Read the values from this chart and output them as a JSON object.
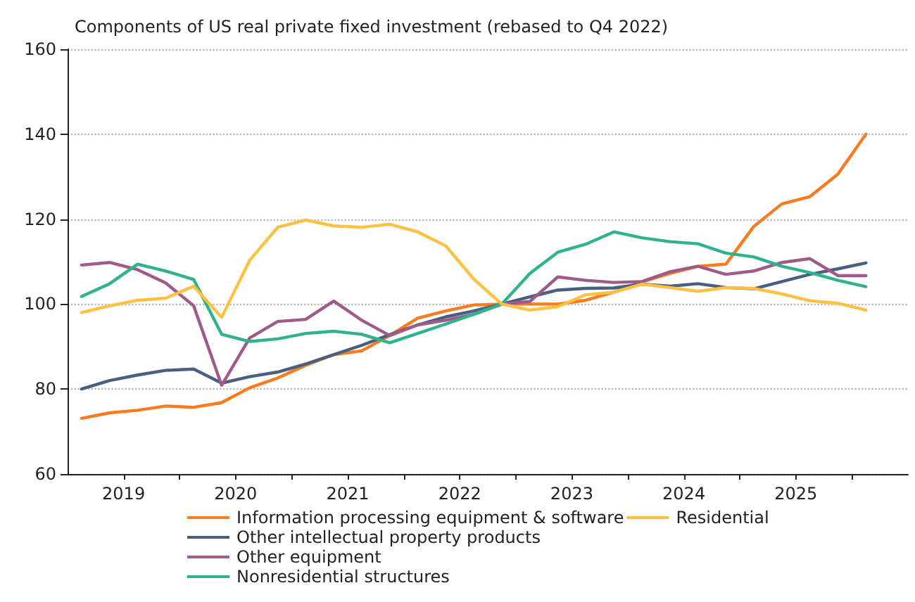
{
  "chart_data": {
    "type": "line",
    "title": "Components of US real private fixed investment (rebased to Q4 2022)",
    "x": [
      2019.125,
      2019.375,
      2019.625,
      2019.875,
      2020.125,
      2020.375,
      2020.625,
      2020.875,
      2021.125,
      2021.375,
      2021.625,
      2021.875,
      2022.125,
      2022.375,
      2022.625,
      2022.875,
      2023.125,
      2023.375,
      2023.625,
      2023.875,
      2024.125,
      2024.375,
      2024.625,
      2024.875,
      2025.125,
      2025.375,
      2025.625,
      2025.875,
      2026.125
    ],
    "series": [
      {
        "name": "Information processing equipment & software",
        "color": "#f97a1f",
        "values": [
          73.1,
          74.4,
          75,
          76,
          75.7,
          76.8,
          80.3,
          82.6,
          85.6,
          88.1,
          89,
          92.6,
          96.7,
          98.4,
          99.8,
          100,
          100,
          100,
          100.9,
          102.8,
          105.2,
          107.2,
          108.9,
          109.4,
          118.3,
          123.6,
          125.3,
          130.6,
          140
        ]
      },
      {
        "name": "Other intellectual property products",
        "color": "#4a5e80",
        "values": [
          80,
          82,
          83.3,
          84.4,
          84.7,
          81.4,
          82.9,
          84,
          85.9,
          88.1,
          90.3,
          92.8,
          95.1,
          97,
          98.4,
          100,
          101.7,
          103.3,
          103.7,
          103.8,
          104.7,
          104.2,
          104.8,
          103.9,
          103.6,
          105.3,
          107,
          108.3,
          109.7
        ]
      },
      {
        "name": "Other equipment",
        "color": "#a05a8a",
        "values": [
          109.2,
          109.8,
          108.1,
          105,
          99.6,
          80.9,
          92,
          95.9,
          96.4,
          100.7,
          96.2,
          92.6,
          95.1,
          96.2,
          97.6,
          100,
          100.6,
          106.4,
          105.6,
          105.1,
          105.3,
          107.6,
          108.9,
          107,
          107.8,
          109.8,
          110.7,
          106.7,
          106.7
        ]
      },
      {
        "name": "Nonresidential structures",
        "color": "#2fb38e",
        "values": [
          101.8,
          104.8,
          109.4,
          107.8,
          105.8,
          92.9,
          91.2,
          91.8,
          93.1,
          93.6,
          92.9,
          90.9,
          93.1,
          95.3,
          97.6,
          100,
          107.2,
          112.2,
          114.1,
          117,
          115.6,
          114.7,
          114.2,
          112,
          111.1,
          108.9,
          107.4,
          105.6,
          104.1
        ]
      },
      {
        "name": "Residential",
        "color": "#fdc13f",
        "values": [
          98,
          99.6,
          100.9,
          101.4,
          104.2,
          96.9,
          110.3,
          118.1,
          119.8,
          118.4,
          118.1,
          118.8,
          117,
          113.7,
          105.9,
          100,
          98.6,
          99.4,
          102.2,
          102.8,
          104.7,
          103.9,
          103,
          103.9,
          103.7,
          102.4,
          100.8,
          100.2,
          98.6
        ]
      }
    ],
    "xlim": [
      2019,
      2026.5
    ],
    "xticks": [
      {
        "value": 2019.5,
        "label": "2019"
      },
      {
        "value": 2020,
        "label": null
      },
      {
        "value": 2020.5,
        "label": "2020"
      },
      {
        "value": 2021,
        "label": null
      },
      {
        "value": 2021.5,
        "label": "2021"
      },
      {
        "value": 2022,
        "label": null
      },
      {
        "value": 2022.5,
        "label": "2022"
      },
      {
        "value": 2023,
        "label": null
      },
      {
        "value": 2023.5,
        "label": "2023"
      },
      {
        "value": 2024,
        "label": null
      },
      {
        "value": 2024.5,
        "label": "2024"
      },
      {
        "value": 2025,
        "label": null
      },
      {
        "value": 2025.5,
        "label": "2025"
      },
      {
        "value": 2026,
        "label": null
      }
    ],
    "ylim": [
      60,
      160
    ],
    "yticks": [
      60,
      80,
      100,
      120,
      140,
      160
    ],
    "grid": "y",
    "legend": "bottom",
    "marker": "none",
    "line_style": "solid"
  }
}
